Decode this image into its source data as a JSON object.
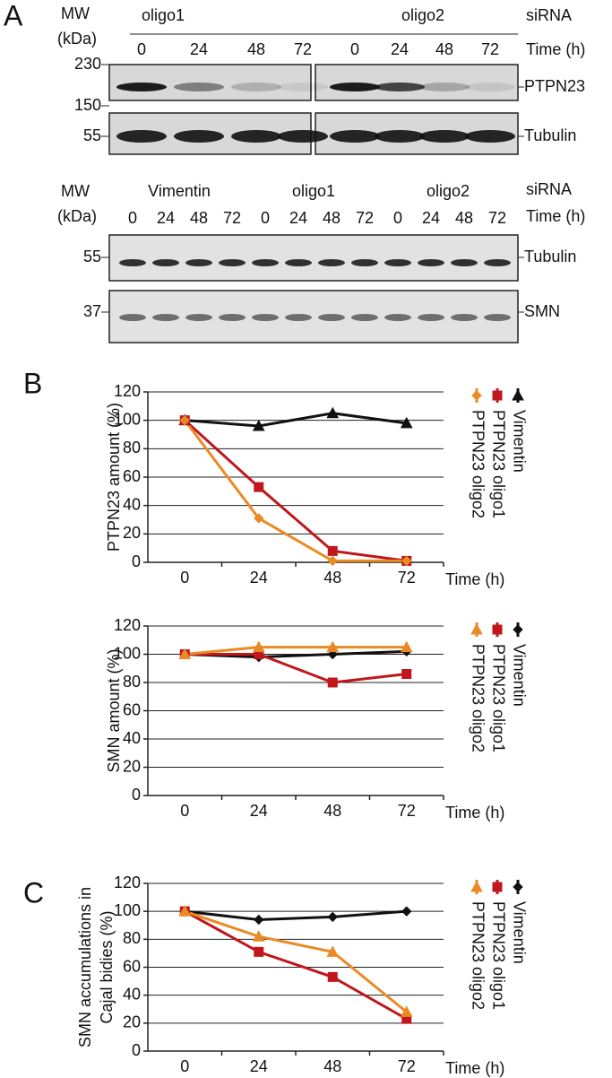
{
  "panel_a": {
    "label": "A",
    "blot1": {
      "mw_label": "MW",
      "mw_unit": "(kDa)",
      "groups": [
        "oligo1",
        "oligo2"
      ],
      "sirna_label": "siRNA",
      "time_label": "Time (h)",
      "times": [
        "0",
        "24",
        "48",
        "72",
        "0",
        "24",
        "48",
        "72"
      ],
      "markers": [
        "230",
        "150",
        "55"
      ],
      "proteins": [
        "PTPN23",
        "Tubulin"
      ]
    },
    "blot2": {
      "mw_label": "MW",
      "mw_unit": "(kDa)",
      "groups": [
        "Vimentin",
        "oligo1",
        "oligo2"
      ],
      "sirna_label": "siRNA",
      "time_label": "Time (h)",
      "times": [
        "0",
        "24",
        "48",
        "72",
        "0",
        "24",
        "48",
        "72",
        "0",
        "24",
        "48",
        "72"
      ],
      "markers": [
        "55",
        "37"
      ],
      "proteins": [
        "Tubulin",
        "SMN"
      ]
    }
  },
  "panel_b_label": "B",
  "panel_c_label": "C",
  "chart_data": [
    {
      "type": "line",
      "ylabel": "PTPN23 amount (%)",
      "xlabel": "Time (h)",
      "categories": [
        "0",
        "24",
        "48",
        "72"
      ],
      "ylim": [
        0,
        120
      ],
      "yticks": [
        0,
        20,
        40,
        60,
        80,
        100,
        120
      ],
      "grid": true,
      "series": [
        {
          "name": "Vimentin",
          "color": "#111111",
          "marker": "triangle",
          "values": [
            100,
            96,
            105,
            98
          ]
        },
        {
          "name": "PTPN23 oligo1",
          "color": "#c0161c",
          "marker": "square",
          "values": [
            100,
            53,
            8,
            1
          ]
        },
        {
          "name": "PTPN23 oligo2",
          "color": "#ea8a25",
          "marker": "diamond",
          "values": [
            100,
            31,
            1,
            1
          ]
        }
      ]
    },
    {
      "type": "line",
      "ylabel": "SMN amount (%)",
      "xlabel": "Time (h)",
      "categories": [
        "0",
        "24",
        "48",
        "72"
      ],
      "ylim": [
        0,
        120
      ],
      "yticks": [
        0,
        20,
        40,
        60,
        80,
        100,
        120
      ],
      "grid": true,
      "series": [
        {
          "name": "Vimentin",
          "color": "#111111",
          "marker": "diamond",
          "values": [
            100,
            98,
            100,
            102
          ]
        },
        {
          "name": "PTPN23 oligo1",
          "color": "#c0161c",
          "marker": "square",
          "values": [
            100,
            100,
            80,
            86
          ]
        },
        {
          "name": "PTPN23 oligo2",
          "color": "#ea8a25",
          "marker": "triangle",
          "values": [
            100,
            105,
            105,
            105
          ]
        }
      ]
    },
    {
      "type": "line",
      "ylabel": [
        "SMN accumulations in",
        "Cajal bidies (%)"
      ],
      "xlabel": "Time (h)",
      "categories": [
        "0",
        "24",
        "48",
        "72"
      ],
      "ylim": [
        0,
        120
      ],
      "yticks": [
        0,
        20,
        40,
        60,
        80,
        100,
        120
      ],
      "grid": true,
      "series": [
        {
          "name": "Vimentin",
          "color": "#111111",
          "marker": "diamond",
          "values": [
            100,
            94,
            96,
            100
          ]
        },
        {
          "name": "PTPN23 oligo1",
          "color": "#c0161c",
          "marker": "square",
          "values": [
            100,
            71,
            53,
            23
          ]
        },
        {
          "name": "PTPN23 oligo2",
          "color": "#ea8a25",
          "marker": "triangle",
          "values": [
            100,
            82,
            71,
            28
          ]
        }
      ]
    }
  ]
}
